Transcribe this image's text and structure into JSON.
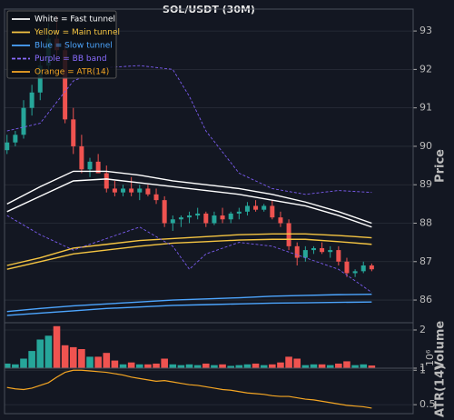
{
  "chart_data": [
    {
      "type": "candlestick",
      "title": "SOL/USDT (30M)",
      "y_label": "Price",
      "x": [
        0,
        1,
        2,
        3,
        4,
        5,
        6,
        7,
        8,
        9,
        10,
        11,
        12,
        13,
        14,
        15,
        16,
        17,
        18,
        19,
        20,
        21,
        22,
        23,
        24,
        25,
        26,
        27,
        28,
        29,
        30,
        31,
        32,
        33,
        34,
        35,
        36,
        37,
        38,
        39,
        40,
        41,
        42,
        43,
        44
      ],
      "open": [
        89.9,
        90.1,
        90.3,
        91.0,
        91.4,
        92.1,
        92.8,
        92.5,
        90.7,
        90.0,
        89.4,
        89.6,
        89.3,
        88.9,
        88.8,
        88.9,
        88.8,
        88.9,
        88.75,
        88.6,
        88.0,
        88.1,
        88.15,
        88.2,
        88.25,
        88.0,
        88.2,
        88.1,
        88.25,
        88.3,
        88.45,
        88.35,
        88.45,
        88.15,
        88.0,
        87.4,
        87.1,
        87.3,
        87.35,
        87.25,
        87.3,
        87.0,
        86.7,
        86.75,
        86.9
      ],
      "high": [
        90.3,
        90.4,
        91.2,
        91.6,
        92.4,
        93.2,
        93.4,
        92.7,
        91.0,
        90.3,
        89.7,
        89.8,
        89.5,
        89.1,
        89.0,
        89.2,
        89.0,
        89.0,
        88.9,
        88.7,
        88.2,
        88.2,
        88.3,
        88.4,
        88.3,
        88.3,
        88.4,
        88.3,
        88.4,
        88.55,
        88.6,
        88.5,
        88.6,
        88.3,
        88.1,
        87.5,
        87.4,
        87.4,
        87.5,
        87.4,
        87.4,
        87.1,
        86.8,
        87.0,
        86.95
      ],
      "low": [
        89.8,
        90.0,
        90.2,
        90.8,
        91.2,
        91.9,
        92.2,
        90.6,
        89.8,
        89.3,
        89.2,
        89.3,
        88.8,
        88.7,
        88.7,
        88.7,
        88.6,
        88.7,
        88.5,
        87.9,
        87.8,
        87.9,
        88.0,
        88.1,
        87.9,
        87.95,
        88.0,
        88.0,
        88.1,
        88.2,
        88.3,
        88.3,
        88.1,
        87.9,
        87.3,
        86.9,
        87.0,
        87.2,
        87.2,
        87.1,
        86.9,
        86.6,
        86.6,
        86.7,
        86.75
      ],
      "close": [
        90.1,
        90.3,
        91.0,
        91.4,
        92.1,
        92.8,
        92.5,
        90.7,
        90.0,
        89.4,
        89.6,
        89.3,
        88.9,
        88.8,
        88.9,
        88.8,
        88.9,
        88.75,
        88.6,
        88.0,
        88.1,
        88.15,
        88.2,
        88.25,
        88.0,
        88.2,
        88.1,
        88.25,
        88.3,
        88.45,
        88.35,
        88.45,
        88.15,
        88.0,
        87.4,
        87.1,
        87.3,
        87.35,
        87.25,
        87.3,
        87.0,
        86.7,
        86.75,
        86.9,
        86.8
      ],
      "up_color": "#26a69a",
      "down_color": "#ef5350",
      "series": [
        {
          "x": [
            0,
            4,
            8,
            12,
            16,
            20,
            24,
            28,
            32,
            36,
            40,
            44
          ],
          "values": [
            88.5,
            88.95,
            89.35,
            89.35,
            89.25,
            89.1,
            89.0,
            88.9,
            88.75,
            88.55,
            88.3,
            88.0
          ],
          "color": "#ffffff"
        },
        {
          "x": [
            0,
            4,
            8,
            12,
            16,
            20,
            24,
            28,
            32,
            36,
            40,
            44
          ],
          "values": [
            88.3,
            88.7,
            89.1,
            89.15,
            89.05,
            88.95,
            88.85,
            88.75,
            88.6,
            88.45,
            88.2,
            87.9
          ],
          "color": "#ffffff"
        },
        {
          "x": [
            0,
            4,
            8,
            12,
            16,
            20,
            24,
            28,
            32,
            36,
            40,
            44
          ],
          "values": [
            86.9,
            87.1,
            87.35,
            87.45,
            87.55,
            87.6,
            87.65,
            87.7,
            87.72,
            87.72,
            87.68,
            87.62
          ],
          "color": "#f5c542"
        },
        {
          "x": [
            0,
            4,
            8,
            12,
            16,
            20,
            24,
            28,
            32,
            36,
            40,
            44
          ],
          "values": [
            86.8,
            87.0,
            87.2,
            87.3,
            87.4,
            87.48,
            87.52,
            87.56,
            87.58,
            87.58,
            87.52,
            87.45
          ],
          "color": "#f5c542"
        },
        {
          "x": [
            0,
            4,
            8,
            12,
            16,
            20,
            24,
            28,
            32,
            36,
            40,
            44
          ],
          "values": [
            85.7,
            85.78,
            85.85,
            85.9,
            85.95,
            86.0,
            86.03,
            86.06,
            86.1,
            86.12,
            86.14,
            86.15
          ],
          "color": "#4da6ff"
        },
        {
          "x": [
            0,
            4,
            8,
            12,
            16,
            20,
            24,
            28,
            32,
            36,
            40,
            44
          ],
          "values": [
            85.6,
            85.66,
            85.72,
            85.78,
            85.82,
            85.86,
            85.88,
            85.9,
            85.92,
            85.93,
            85.94,
            85.95
          ],
          "color": "#4da6ff"
        },
        {
          "x": [
            0,
            4,
            8,
            12,
            16,
            20,
            22,
            24,
            28,
            32,
            36,
            40,
            44
          ],
          "values": [
            90.4,
            90.6,
            91.7,
            92.05,
            92.1,
            92.0,
            91.3,
            90.4,
            89.3,
            88.9,
            88.75,
            88.85,
            88.8
          ],
          "color": "#7b5cf0",
          "dashed": true
        },
        {
          "x": [
            0,
            4,
            8,
            12,
            16,
            20,
            22,
            24,
            28,
            32,
            36,
            40,
            44
          ],
          "values": [
            88.2,
            87.7,
            87.3,
            87.6,
            87.9,
            87.4,
            86.8,
            87.2,
            87.5,
            87.4,
            87.1,
            86.8,
            86.2
          ],
          "color": "#7b5cf0",
          "dashed": true
        }
      ],
      "legend": [
        {
          "label": "White = Fast tunnel",
          "color": "#ffffff"
        },
        {
          "label": "Yellow = Main tunnel",
          "color": "#f5c542"
        },
        {
          "label": "Blue = Slow tunnel",
          "color": "#4da6ff"
        },
        {
          "label": "Purple = BB band",
          "color": "#8a6cff",
          "dashed": true
        },
        {
          "label": "Orange = ATR(14)",
          "color": "#f5a623"
        }
      ],
      "xlim": [
        -0.3,
        49
      ],
      "ylim": [
        85.41,
        93.57
      ],
      "yticks": [
        86,
        87,
        88,
        89,
        90,
        91,
        92,
        93
      ],
      "grid": true
    },
    {
      "type": "bar",
      "y_label": "Volume",
      "offset_label": "10⁶",
      "values": [
        1.12,
        1.1,
        1.25,
        1.45,
        1.75,
        1.85,
        2.1,
        1.6,
        1.55,
        1.5,
        1.3,
        1.3,
        1.4,
        1.2,
        1.1,
        1.15,
        1.1,
        1.1,
        1.12,
        1.25,
        1.1,
        1.08,
        1.1,
        1.08,
        1.12,
        1.08,
        1.1,
        1.06,
        1.08,
        1.1,
        1.12,
        1.08,
        1.1,
        1.15,
        1.3,
        1.25,
        1.08,
        1.1,
        1.1,
        1.08,
        1.12,
        1.18,
        1.08,
        1.1,
        1.07
      ],
      "ylim": [
        1,
        2.19
      ],
      "yticks": [
        1,
        2
      ],
      "grid": true
    },
    {
      "type": "line",
      "y_label": "ATR(14)",
      "color": "#f5a623",
      "values": [
        0.75,
        0.73,
        0.72,
        0.74,
        0.78,
        0.82,
        0.9,
        0.97,
        1.0,
        1.0,
        0.99,
        0.98,
        0.97,
        0.95,
        0.93,
        0.9,
        0.88,
        0.86,
        0.84,
        0.85,
        0.83,
        0.81,
        0.79,
        0.78,
        0.76,
        0.74,
        0.72,
        0.71,
        0.69,
        0.67,
        0.66,
        0.65,
        0.63,
        0.62,
        0.62,
        0.6,
        0.58,
        0.57,
        0.55,
        0.53,
        0.51,
        0.49,
        0.48,
        0.47,
        0.45
      ],
      "ylim": [
        0.37,
        1.03
      ],
      "yticks": [
        0.5,
        1
      ],
      "grid": true
    }
  ]
}
